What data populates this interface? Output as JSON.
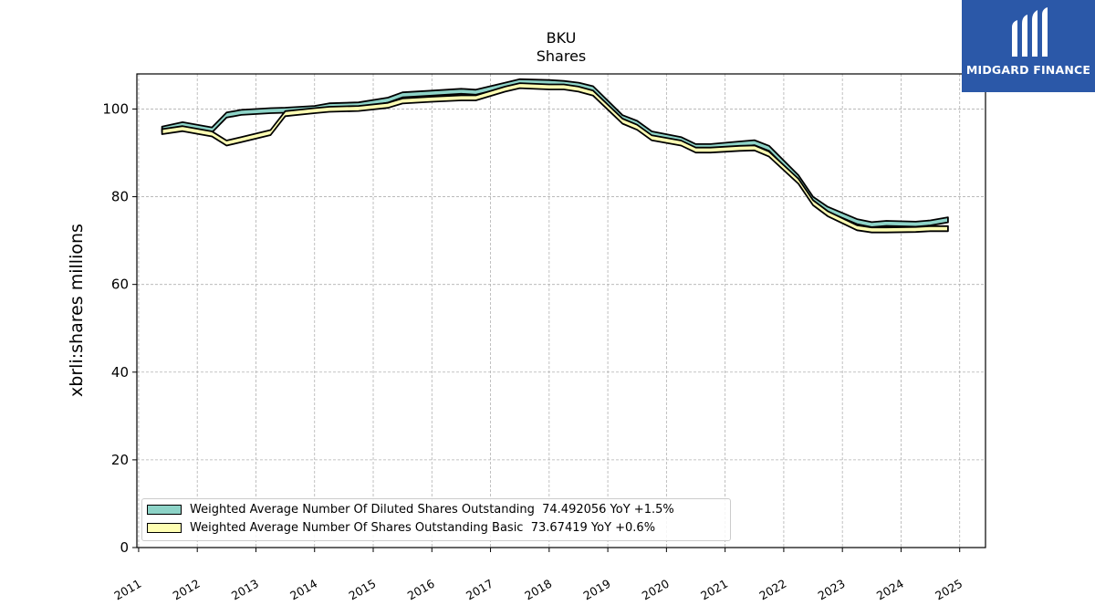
{
  "header": {
    "ticker": "BKU",
    "subtitle": "Shares"
  },
  "brand": {
    "name": "MIDGARD FINANCE",
    "color": "#2b58a8"
  },
  "chart_data": {
    "type": "area",
    "title": "BKU",
    "subtitle": "Shares",
    "ylabel": "xbrli:shares millions",
    "xlabel": "",
    "ylim": [
      0,
      108
    ],
    "xlim": [
      2010.97,
      2025.44
    ],
    "yticks": [
      0,
      20,
      40,
      60,
      80,
      100
    ],
    "ytick_labels": [
      "0",
      "20",
      "40",
      "60",
      "80",
      "100"
    ],
    "xticks": [
      2011,
      2012,
      2013,
      2014,
      2015,
      2016,
      2017,
      2018,
      2019,
      2020,
      2021,
      2022,
      2023,
      2024,
      2025
    ],
    "xtick_labels": [
      "2011",
      "2012",
      "2013",
      "2014",
      "2015",
      "2016",
      "2017",
      "2018",
      "2019",
      "2020",
      "2021",
      "2022",
      "2023",
      "2024",
      "2025"
    ],
    "grid": true,
    "legend_position": "lower-left",
    "x": [
      2011.4,
      2011.75,
      2012.25,
      2012.5,
      2012.75,
      2013.25,
      2013.5,
      2014.0,
      2014.25,
      2014.75,
      2015.25,
      2015.5,
      2016.0,
      2016.5,
      2016.75,
      2017.25,
      2017.5,
      2018.0,
      2018.25,
      2018.5,
      2018.75,
      2019.25,
      2019.5,
      2019.75,
      2020.25,
      2020.5,
      2020.75,
      2021.25,
      2021.5,
      2021.75,
      2022.25,
      2022.5,
      2022.75,
      2023.25,
      2023.5,
      2023.75,
      2024.25,
      2024.5,
      2024.8
    ],
    "series": [
      {
        "name": "Weighted Average Number Of Diluted Shares Outstanding",
        "legend_value": "74.492056 YoY +1.5%",
        "color": "#8dd3c7",
        "values": [
          96.0,
          97.0,
          95.8,
          99.2,
          99.8,
          100.2,
          100.3,
          100.7,
          101.3,
          101.5,
          102.6,
          103.8,
          104.2,
          104.6,
          104.4,
          106.0,
          106.8,
          106.6,
          106.4,
          106.0,
          105.2,
          98.6,
          97.3,
          94.9,
          93.6,
          92.0,
          92.0,
          92.6,
          92.9,
          91.6,
          84.9,
          80.0,
          77.7,
          74.9,
          74.2,
          74.5,
          74.3,
          74.6,
          75.3
        ]
      },
      {
        "name": "Weighted Average Number Of Shares Outstanding Basic",
        "legend_value": "73.67419 YoY +0.6%",
        "color": "#ffffb3",
        "values": [
          95.4,
          96.1,
          94.9,
          92.8,
          93.6,
          95.2,
          99.5,
          100.2,
          100.5,
          100.7,
          101.4,
          102.4,
          102.8,
          103.1,
          103.1,
          105.1,
          105.9,
          105.6,
          105.6,
          105.1,
          104.2,
          97.8,
          96.4,
          94.0,
          92.8,
          91.2,
          91.2,
          91.6,
          91.7,
          90.3,
          84.1,
          79.2,
          76.7,
          73.5,
          73.0,
          73.0,
          73.1,
          73.3,
          73.3
        ]
      }
    ]
  }
}
